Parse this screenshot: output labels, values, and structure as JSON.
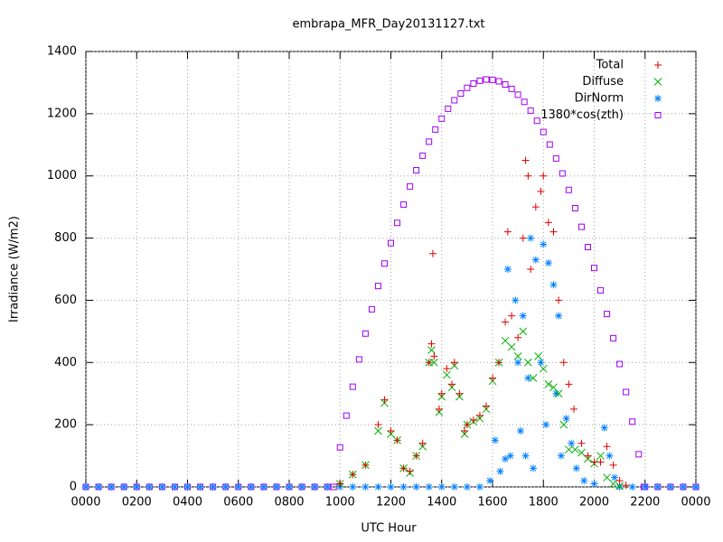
{
  "chart_data": {
    "type": "scatter",
    "title": "embrapa_MFR_Day20131127.txt",
    "x_label": "UTC Hour",
    "y_label": "Irradiance (W/m2)",
    "xlim": [
      0,
      24
    ],
    "ylim": [
      0,
      1400
    ],
    "xticks": [
      {
        "value": 0,
        "label": "0000"
      },
      {
        "value": 2,
        "label": "0200"
      },
      {
        "value": 4,
        "label": "0400"
      },
      {
        "value": 6,
        "label": "0600"
      },
      {
        "value": 8,
        "label": "0800"
      },
      {
        "value": 10,
        "label": "1000"
      },
      {
        "value": 12,
        "label": "1200"
      },
      {
        "value": 14,
        "label": "1400"
      },
      {
        "value": 16,
        "label": "1600"
      },
      {
        "value": 18,
        "label": "1800"
      },
      {
        "value": 20,
        "label": "2000"
      },
      {
        "value": 22,
        "label": "2200"
      },
      {
        "value": 24,
        "label": "0000"
      }
    ],
    "yticks": [
      0,
      200,
      400,
      600,
      800,
      1000,
      1200,
      1400
    ],
    "grid": true,
    "legend": "top-right",
    "series": [
      {
        "name": "Total",
        "color": "#e00000",
        "marker": "plus",
        "x": [
          10,
          10.5,
          11,
          11.5,
          11.75,
          12,
          12.25,
          12.5,
          12.75,
          13,
          13.25,
          13.5,
          13.6,
          13.65,
          13.7,
          13.9,
          14,
          14.2,
          14.4,
          14.5,
          14.7,
          14.9,
          15,
          15.25,
          15.5,
          15.75,
          16,
          16.25,
          16.5,
          16.6,
          16.75,
          17,
          17.2,
          17.3,
          17.4,
          17.5,
          17.7,
          17.9,
          18,
          18.2,
          18.4,
          18.6,
          18.8,
          19,
          19.2,
          19.5,
          19.75,
          20,
          20.25,
          20.5,
          20.75,
          21,
          21.25
        ],
        "values": [
          10,
          40,
          70,
          200,
          280,
          180,
          150,
          60,
          50,
          100,
          140,
          400,
          460,
          750,
          420,
          250,
          300,
          380,
          330,
          400,
          300,
          180,
          200,
          215,
          230,
          260,
          350,
          400,
          530,
          820,
          550,
          480,
          800,
          1050,
          1000,
          700,
          900,
          950,
          1000,
          850,
          820,
          600,
          400,
          330,
          250,
          140,
          100,
          80,
          80,
          130,
          70,
          20,
          5
        ]
      },
      {
        "name": "Diffuse",
        "color": "#00b000",
        "marker": "cross",
        "x": [
          10,
          10.5,
          11,
          11.5,
          11.75,
          12,
          12.25,
          12.5,
          12.75,
          13,
          13.25,
          13.5,
          13.6,
          13.7,
          13.9,
          14,
          14.2,
          14.4,
          14.5,
          14.7,
          14.9,
          15,
          15.25,
          15.5,
          15.75,
          16,
          16.25,
          16.5,
          16.75,
          17,
          17.2,
          17.4,
          17.6,
          17.8,
          18,
          18.2,
          18.4,
          18.6,
          18.8,
          19,
          19.25,
          19.5,
          19.75,
          20,
          20.25,
          20.5,
          20.75,
          21
        ],
        "values": [
          10,
          40,
          70,
          180,
          270,
          170,
          150,
          60,
          45,
          100,
          130,
          400,
          440,
          400,
          240,
          290,
          360,
          320,
          390,
          290,
          170,
          200,
          210,
          220,
          250,
          340,
          400,
          470,
          450,
          420,
          500,
          400,
          350,
          420,
          380,
          330,
          320,
          300,
          200,
          120,
          120,
          110,
          90,
          75,
          100,
          30,
          10,
          3
        ]
      },
      {
        "name": "DirNorm",
        "color": "#0080ff",
        "marker": "star",
        "x": [
          0,
          0.5,
          1,
          1.5,
          2,
          2.5,
          3,
          3.5,
          4,
          4.5,
          5,
          5.5,
          6,
          6.5,
          7,
          7.5,
          8,
          8.5,
          9,
          9.5,
          10,
          10.5,
          11,
          11.5,
          12,
          12.5,
          13,
          13.5,
          14,
          14.5,
          15,
          15.5,
          15.9,
          16.1,
          16.3,
          16.5,
          16.6,
          16.7,
          16.9,
          17,
          17.1,
          17.2,
          17.3,
          17.4,
          17.5,
          17.6,
          17.7,
          17.9,
          18,
          18.1,
          18.2,
          18.4,
          18.5,
          18.6,
          18.7,
          18.9,
          19.1,
          19.3,
          19.6,
          20,
          20.4,
          20.6,
          20.8,
          21,
          21.5,
          22,
          22.5,
          23,
          23.5,
          24
        ],
        "values": [
          0,
          0,
          0,
          0,
          0,
          0,
          0,
          0,
          0,
          0,
          0,
          0,
          0,
          0,
          0,
          0,
          0,
          0,
          0,
          0,
          0,
          0,
          0,
          0,
          0,
          0,
          0,
          0,
          0,
          0,
          0,
          0,
          20,
          150,
          50,
          90,
          700,
          100,
          600,
          400,
          180,
          550,
          100,
          350,
          800,
          60,
          730,
          400,
          780,
          200,
          720,
          650,
          300,
          550,
          100,
          220,
          140,
          60,
          20,
          10,
          190,
          100,
          30,
          0,
          0,
          0,
          0,
          0,
          0,
          0
        ]
      },
      {
        "name": "1380*cos(zth)",
        "color": "#a000f0",
        "marker": "square",
        "x": [
          0,
          0.5,
          1,
          1.5,
          2,
          2.5,
          3,
          3.5,
          4,
          4.5,
          5,
          5.5,
          6,
          6.5,
          7,
          7.5,
          8,
          8.5,
          9,
          9.5,
          9.75,
          10,
          10.25,
          10.5,
          10.75,
          11,
          11.25,
          11.5,
          11.75,
          12,
          12.25,
          12.5,
          12.75,
          13,
          13.25,
          13.5,
          13.75,
          14,
          14.25,
          14.5,
          14.75,
          15,
          15.25,
          15.5,
          15.75,
          16,
          16.25,
          16.5,
          16.75,
          17,
          17.25,
          17.5,
          17.75,
          18,
          18.25,
          18.5,
          18.75,
          19,
          19.25,
          19.5,
          19.75,
          20,
          20.25,
          20.5,
          20.75,
          21,
          21.25,
          21.5,
          21.75,
          21.95,
          22,
          22.5,
          23,
          23.5,
          24
        ],
        "values": [
          0,
          0,
          0,
          0,
          0,
          0,
          0,
          0,
          0,
          0,
          0,
          0,
          0,
          0,
          0,
          0,
          0,
          0,
          0,
          0,
          0,
          127,
          229,
          322,
          410,
          493,
          571,
          646,
          718,
          784,
          849,
          908,
          966,
          1018,
          1065,
          1110,
          1149,
          1184,
          1216,
          1243,
          1265,
          1283,
          1297,
          1306,
          1310,
          1309,
          1304,
          1294,
          1280,
          1261,
          1238,
          1210,
          1177,
          1141,
          1101,
          1056,
          1008,
          955,
          896,
          836,
          771,
          704,
          632,
          556,
          478,
          395,
          305,
          210,
          105,
          0,
          0,
          0,
          0,
          0,
          0
        ]
      }
    ]
  }
}
